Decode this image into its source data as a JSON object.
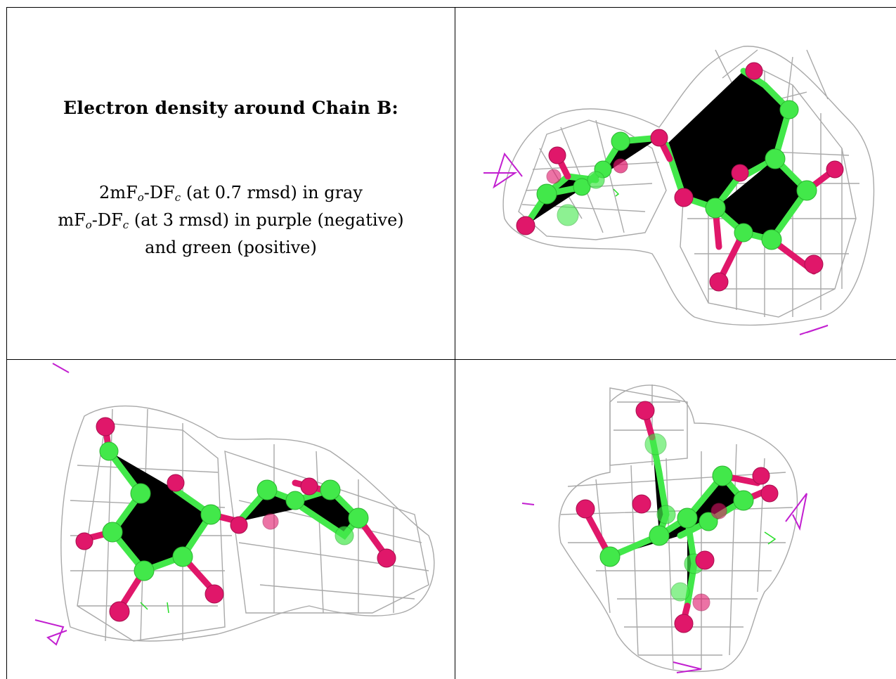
{
  "heading": "Electron density around Chain B:",
  "legend": {
    "line1": {
      "pre": "2mF",
      "sub1": "o",
      "mid": "-DF",
      "sub2": "c",
      "post": " (at 0.7 rmsd) in gray"
    },
    "line2": {
      "pre": "mF",
      "sub1": "o",
      "mid": "-DF",
      "sub2": "c",
      "post": " (at 3 rmsd) in purple (negative)"
    },
    "line3": "and green (positive)"
  },
  "colors": {
    "carbon": "#42e84a",
    "oxygen": "#e0176a",
    "mesh_2fofc": "#a9a9a9",
    "mesh_negative": "#c21fd0",
    "mesh_positive": "#27dd27"
  }
}
